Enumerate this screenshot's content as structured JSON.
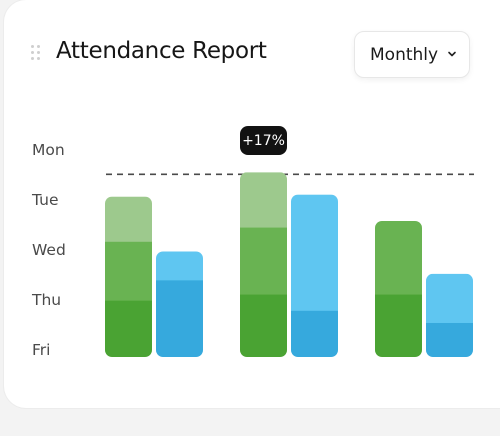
{
  "card": {
    "title": "Attendance Report",
    "period_dropdown": {
      "selected": "Monthly",
      "icon": "chevron-down-icon"
    },
    "drag_handle_icon": "drag-handle-icon"
  },
  "y_axis_labels": [
    "Mon",
    "Tue",
    "Wed",
    "Thu",
    "Fri"
  ],
  "badge": {
    "text": "+17%"
  },
  "colors": {
    "green_light": "#9dc98d",
    "green_mid": "#69b352",
    "green_dark": "#4aa333",
    "blue_light": "#5fc6f1",
    "blue_dark": "#36a9dd",
    "reference_line": "#4a4a4a"
  },
  "chart_data": {
    "type": "bar",
    "stacked": true,
    "reference_line_level": 0.9,
    "groups": [
      {
        "green": [
          0.28,
          0.29,
          0.22
        ],
        "blue": [
          0.38,
          0.14
        ]
      },
      {
        "green": [
          0.31,
          0.33,
          0.27
        ],
        "blue": [
          0.23,
          0.57
        ]
      },
      {
        "green": [
          0.31,
          0.36
        ],
        "blue": [
          0.17,
          0.24
        ]
      }
    ]
  }
}
